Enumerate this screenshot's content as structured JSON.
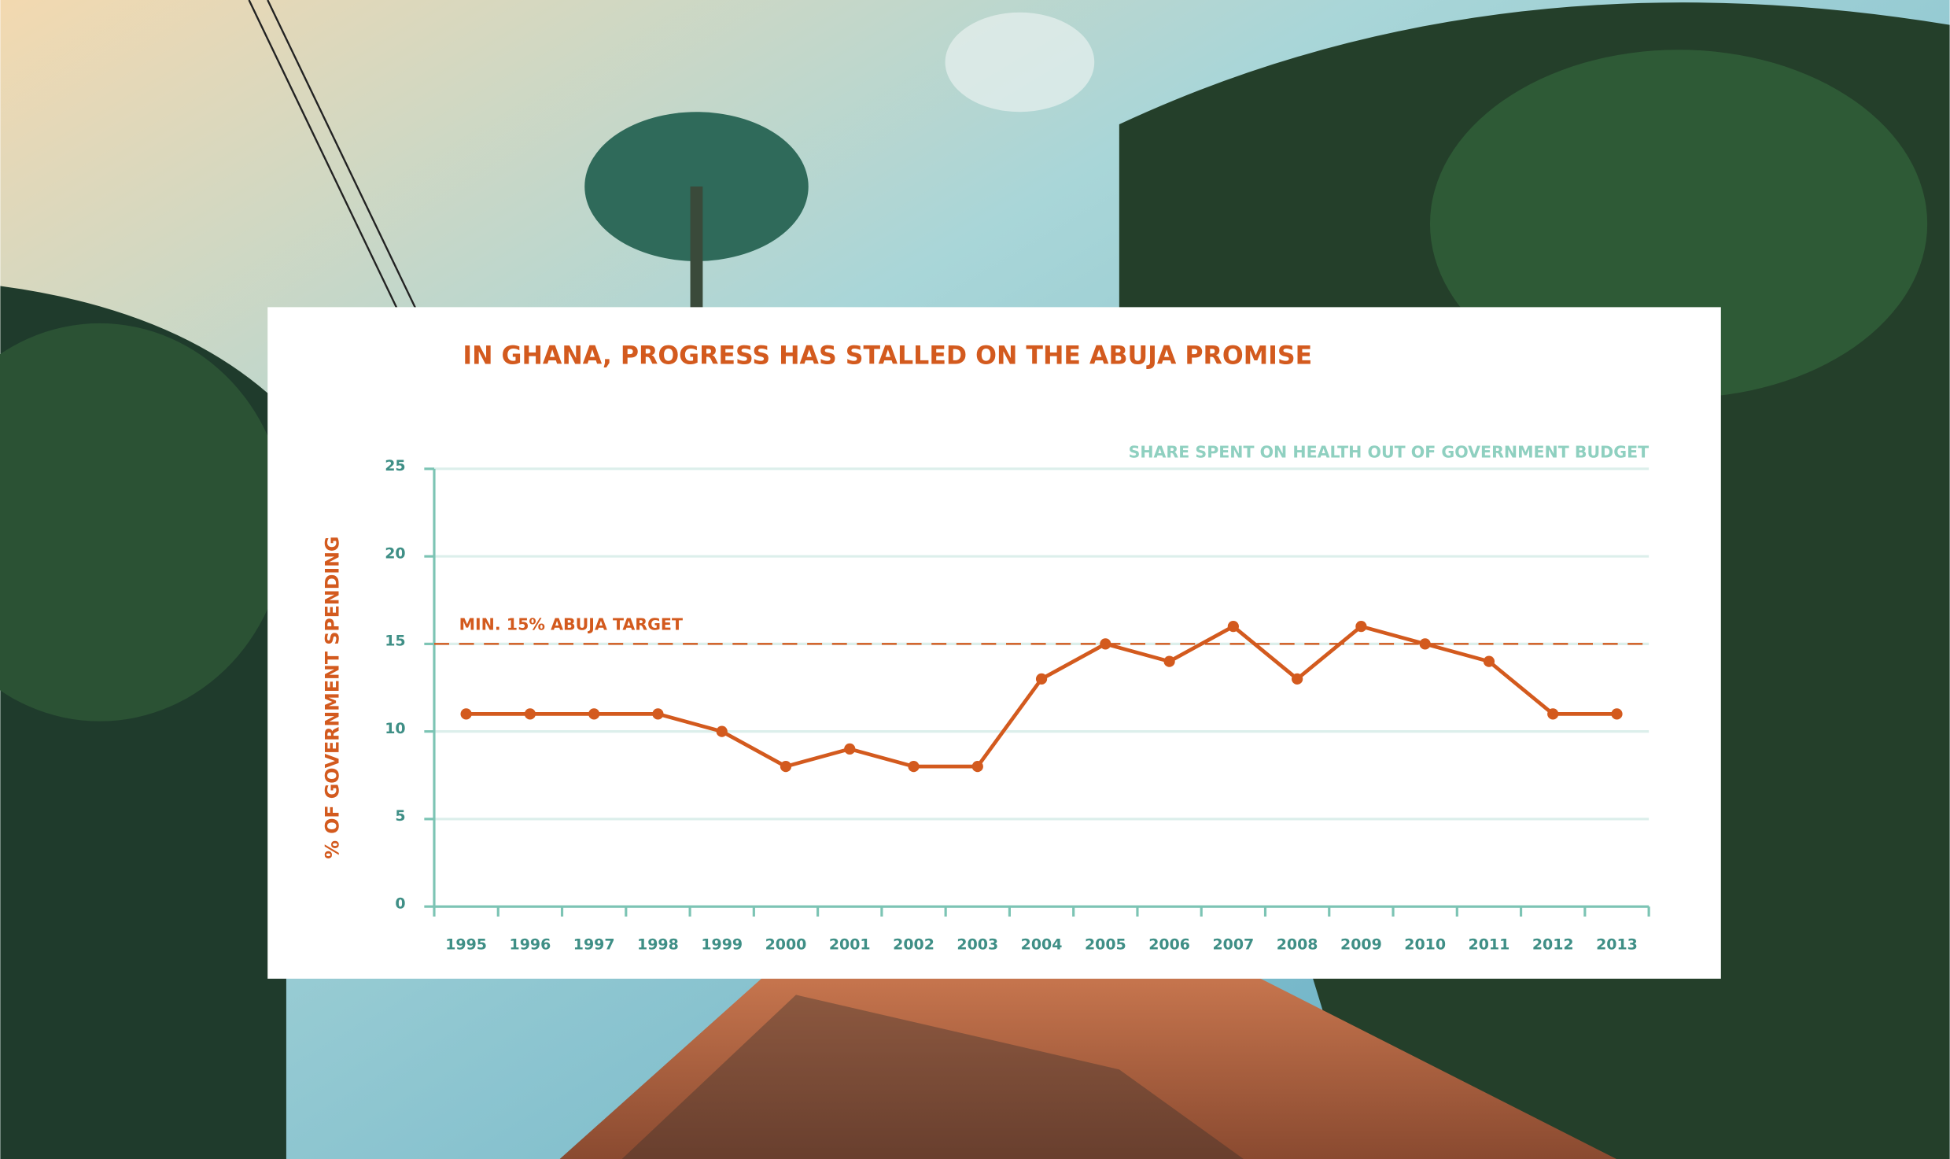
{
  "chart_data": {
    "type": "line",
    "title": "IN GHANA, PROGRESS HAS STALLED ON THE ABUJA PROMISE",
    "subtitle": "SHARE SPENT ON HEALTH OUT OF GOVERNMENT BUDGET",
    "y_label": "% OF GOVERNMENT SPENDING",
    "categories": [
      "1995",
      "1996",
      "1997",
      "1998",
      "1999",
      "2000",
      "2001",
      "2002",
      "2003",
      "2004",
      "2005",
      "2006",
      "2007",
      "2008",
      "2009",
      "2010",
      "2011",
      "2012",
      "2013"
    ],
    "values": [
      11,
      11,
      11,
      11,
      10,
      8,
      9,
      8,
      8,
      13,
      15,
      14,
      16,
      13,
      16,
      15,
      14,
      11,
      11
    ],
    "color": "#d35a1e",
    "target": {
      "value": 15,
      "label": "MIN. 15% ABUJA TARGET"
    },
    "ylim": [
      0,
      25
    ],
    "yticks": [
      0,
      5,
      10,
      15,
      20,
      25
    ],
    "grid": true
  }
}
